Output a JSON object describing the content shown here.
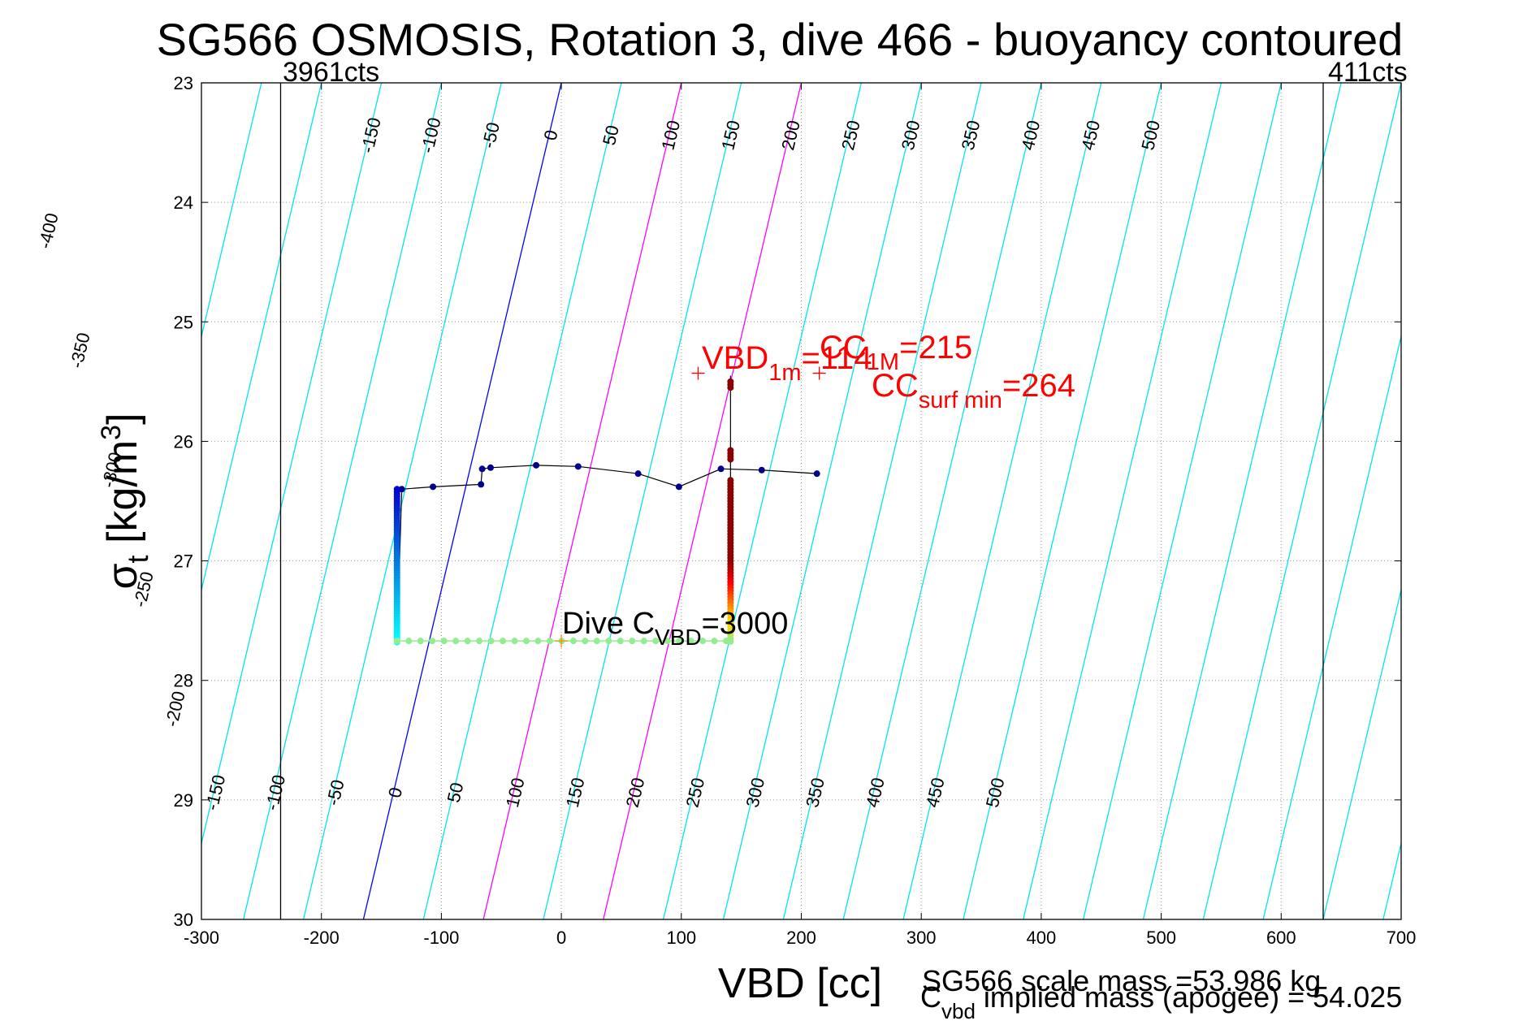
{
  "chart_data": {
    "type": "line",
    "title": "SG566 OSMOSIS, Rotation 3, dive 466 - buoyancy contoured",
    "xlabel": "VBD [cc]",
    "ylabel": {
      "base": "σ",
      "sub": "t",
      "unit_prefix": " [kg/m",
      "unit_sup": "3",
      "unit_suffix": "]"
    },
    "xlim": [
      -300,
      700
    ],
    "ylim": [
      23,
      30
    ],
    "y_reversed": true,
    "grid": true,
    "x_ticks": [
      -300,
      -200,
      -100,
      0,
      100,
      200,
      300,
      400,
      500,
      600,
      700
    ],
    "y_ticks": [
      23,
      24,
      25,
      26,
      27,
      28,
      29,
      30
    ],
    "x_tick_labels": [
      "-300",
      "-200",
      "-100",
      "0",
      "100",
      "200",
      "300",
      "400",
      "500",
      "600",
      "700"
    ],
    "y_tick_labels": [
      "23",
      "24",
      "25",
      "26",
      "27",
      "28",
      "29",
      "30"
    ],
    "vbd_limits": [
      {
        "x": -234,
        "label": "3961cts"
      },
      {
        "x": 635,
        "label": "411cts"
      }
    ],
    "buoyancy_contours": {
      "reference_x_at_sigma23": 0,
      "reference_x_at_sigma30": -165,
      "levels": [
        -400,
        -350,
        -300,
        -250,
        -200,
        -150,
        -100,
        -50,
        0,
        50,
        100,
        150,
        200,
        250,
        300,
        350,
        400,
        450,
        500
      ],
      "top_labels": [
        "-150",
        "-100",
        "-50",
        "0",
        "50",
        "100",
        "150",
        "200",
        "250",
        "300",
        "350",
        "400",
        "450",
        "500"
      ],
      "left_labels": [
        "-400",
        "-350",
        "-300",
        "-250",
        "-200"
      ],
      "bottom_labels": [
        "-150",
        "-100",
        "-50",
        "0",
        "50",
        "100",
        "150",
        "200",
        "250",
        "300",
        "350",
        "400",
        "450",
        "500"
      ],
      "colors": {
        "default": "#00e5ee",
        "zero": "#0000ff",
        "highlight": "#ff00ff"
      },
      "highlight_levels": [
        100,
        200
      ]
    },
    "series": [
      {
        "points": [
          [
            -133,
            26.4
          ],
          [
            -107,
            26.38
          ],
          [
            -67,
            26.36
          ],
          [
            -66,
            26.23
          ],
          [
            -59,
            26.22
          ],
          [
            -21,
            26.2
          ],
          [
            14,
            26.21
          ],
          [
            64,
            26.27
          ],
          [
            98,
            26.38
          ],
          [
            133,
            26.23
          ],
          [
            167,
            26.24
          ],
          [
            213,
            26.27
          ]
        ],
        "point_color": "#00008b"
      },
      {
        "depth_trace_x_left": -137,
        "depth_trace_x_right": 141,
        "sigma_range": [
          26.4,
          27.7
        ],
        "colors": [
          "#0000cd",
          "#00ffff",
          "#90ee90",
          "#ffd700",
          "#8b0000"
        ]
      }
    ],
    "annotations": {
      "vbd_1m": {
        "x": 114,
        "y": 25.43,
        "text": "VBD",
        "sub": "1m",
        "value": "=114"
      },
      "cc_1m": {
        "x": 215,
        "y": 25.43,
        "text": "CC",
        "sub": "1M",
        "value": "=215"
      },
      "cc_surf_min": {
        "x": 264,
        "text": "CC",
        "sub": "surf min",
        "value": "=264"
      },
      "dive_c_vbd": {
        "x": 0,
        "y": 27.67,
        "text": "Dive C",
        "sub": "VBD",
        "value": "=3000"
      }
    }
  },
  "footer": {
    "scale_mass": "SG566 scale mass =53.986 kg",
    "implied_prefix": "C",
    "implied_sub": "vbd",
    "implied_suffix": " implied mass (apogee) = 54.025"
  }
}
